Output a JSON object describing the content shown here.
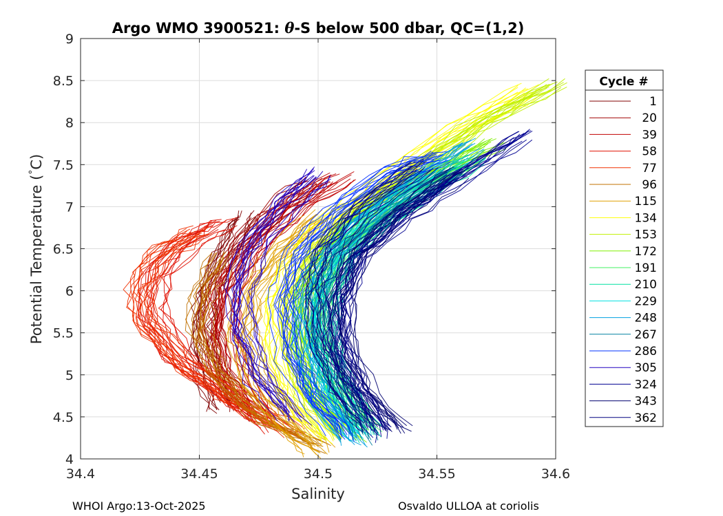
{
  "chart_data": {
    "type": "line",
    "title_parts": {
      "prefix": "Argo WMO 3900521: ",
      "theta": "θ",
      "suffix": "-S below 500 dbar,  QC=(1,2)"
    },
    "xlabel": "Salinity",
    "ylabel_parts": {
      "before": "Potential Temperature (",
      "degree": "°",
      "after": "C)"
    },
    "xlim": [
      34.4,
      34.6
    ],
    "ylim": [
      4,
      9
    ],
    "xticks": [
      "34.4",
      "34.45",
      "34.5",
      "34.55",
      "34.6"
    ],
    "yticks": [
      "4",
      "4.5",
      "5",
      "5.5",
      "6",
      "6.5",
      "7",
      "7.5",
      "8",
      "8.5",
      "9"
    ],
    "grid": true,
    "legend": {
      "title": "Cycle #",
      "position": "right",
      "entries": [
        {
          "label": "1",
          "color": "#800000"
        },
        {
          "label": "20",
          "color": "#a00000"
        },
        {
          "label": "39",
          "color": "#c00000"
        },
        {
          "label": "58",
          "color": "#e01000"
        },
        {
          "label": "77",
          "color": "#f03000"
        },
        {
          "label": "96",
          "color": "#c07000"
        },
        {
          "label": "115",
          "color": "#e0a000"
        },
        {
          "label": "134",
          "color": "#ffff00"
        },
        {
          "label": "153",
          "color": "#c0f000"
        },
        {
          "label": "172",
          "color": "#80f000"
        },
        {
          "label": "191",
          "color": "#40f060"
        },
        {
          "label": "210",
          "color": "#00e0a0"
        },
        {
          "label": "229",
          "color": "#00e0e0"
        },
        {
          "label": "248",
          "color": "#00a0e0"
        },
        {
          "label": "267",
          "color": "#0080a0"
        },
        {
          "label": "286",
          "color": "#0030ff"
        },
        {
          "label": "305",
          "color": "#2000c0"
        },
        {
          "label": "324",
          "color": "#000090"
        },
        {
          "label": "343",
          "color": "#000070"
        },
        {
          "label": "362",
          "color": "#000080"
        }
      ]
    },
    "series": [
      {
        "name": "1",
        "color": "#800000",
        "points": [
          [
            34.46,
            4.6
          ],
          [
            34.455,
            5.0
          ],
          [
            34.452,
            5.5
          ],
          [
            34.455,
            6.0
          ],
          [
            34.462,
            6.5
          ],
          [
            34.47,
            6.9
          ]
        ]
      },
      {
        "name": "20",
        "color": "#a00000",
        "points": [
          [
            34.47,
            4.6
          ],
          [
            34.46,
            5.0
          ],
          [
            34.456,
            5.5
          ],
          [
            34.458,
            6.0
          ],
          [
            34.468,
            6.5
          ],
          [
            34.485,
            7.0
          ],
          [
            34.5,
            7.3
          ]
        ]
      },
      {
        "name": "39",
        "color": "#c00000",
        "points": [
          [
            34.475,
            4.5
          ],
          [
            34.465,
            5.0
          ],
          [
            34.46,
            5.5
          ],
          [
            34.462,
            6.0
          ],
          [
            34.472,
            6.5
          ],
          [
            34.49,
            7.0
          ],
          [
            34.51,
            7.35
          ]
        ]
      },
      {
        "name": "58",
        "color": "#e01000",
        "points": [
          [
            34.48,
            4.4
          ],
          [
            34.46,
            4.8
          ],
          [
            34.44,
            5.2
          ],
          [
            34.43,
            5.7
          ],
          [
            34.432,
            6.2
          ],
          [
            34.445,
            6.6
          ],
          [
            34.46,
            6.8
          ]
        ]
      },
      {
        "name": "77",
        "color": "#f03000",
        "points": [
          [
            34.49,
            4.3
          ],
          [
            34.465,
            4.7
          ],
          [
            34.445,
            5.1
          ],
          [
            34.428,
            5.6
          ],
          [
            34.425,
            6.0
          ],
          [
            34.432,
            6.4
          ],
          [
            34.45,
            6.7
          ]
        ]
      },
      {
        "name": "96",
        "color": "#c07000",
        "points": [
          [
            34.5,
            4.15
          ],
          [
            34.475,
            4.5
          ],
          [
            34.458,
            5.0
          ],
          [
            34.45,
            5.5
          ],
          [
            34.452,
            6.0
          ],
          [
            34.46,
            6.4
          ]
        ]
      },
      {
        "name": "115",
        "color": "#e0a000",
        "points": [
          [
            34.5,
            4.1
          ],
          [
            34.485,
            4.5
          ],
          [
            34.472,
            5.0
          ],
          [
            34.468,
            5.5
          ],
          [
            34.472,
            6.0
          ],
          [
            34.485,
            6.5
          ],
          [
            34.5,
            6.9
          ]
        ]
      },
      {
        "name": "134",
        "color": "#ffff00",
        "points": [
          [
            34.505,
            4.25
          ],
          [
            34.49,
            4.7
          ],
          [
            34.484,
            5.2
          ],
          [
            34.484,
            5.8
          ],
          [
            34.49,
            6.3
          ],
          [
            34.505,
            6.8
          ],
          [
            34.53,
            7.3
          ],
          [
            34.56,
            7.9
          ],
          [
            34.59,
            8.4
          ]
        ]
      },
      {
        "name": "153",
        "color": "#c0f000",
        "points": [
          [
            34.51,
            4.3
          ],
          [
            34.496,
            4.8
          ],
          [
            34.49,
            5.3
          ],
          [
            34.49,
            5.9
          ],
          [
            34.498,
            6.4
          ],
          [
            34.515,
            6.9
          ],
          [
            34.54,
            7.4
          ],
          [
            34.57,
            8.0
          ],
          [
            34.6,
            8.45
          ]
        ]
      },
      {
        "name": "172",
        "color": "#80f000",
        "points": [
          [
            34.515,
            4.3
          ],
          [
            34.5,
            4.8
          ],
          [
            34.494,
            5.4
          ],
          [
            34.496,
            6.0
          ],
          [
            34.505,
            6.5
          ],
          [
            34.525,
            7.0
          ],
          [
            34.55,
            7.4
          ],
          [
            34.575,
            7.75
          ]
        ]
      },
      {
        "name": "191",
        "color": "#40f060",
        "points": [
          [
            34.52,
            4.35
          ],
          [
            34.505,
            4.9
          ],
          [
            34.499,
            5.4
          ],
          [
            34.5,
            6.0
          ],
          [
            34.51,
            6.5
          ],
          [
            34.53,
            7.0
          ],
          [
            34.56,
            7.5
          ]
        ]
      },
      {
        "name": "210",
        "color": "#00e0a0",
        "points": [
          [
            34.52,
            4.3
          ],
          [
            34.508,
            4.9
          ],
          [
            34.502,
            5.4
          ],
          [
            34.503,
            6.0
          ],
          [
            34.513,
            6.5
          ],
          [
            34.535,
            7.0
          ],
          [
            34.565,
            7.55
          ]
        ]
      },
      {
        "name": "229",
        "color": "#00e0e0",
        "points": [
          [
            34.518,
            4.25
          ],
          [
            34.506,
            4.8
          ],
          [
            34.5,
            5.3
          ],
          [
            34.5,
            5.9
          ],
          [
            34.508,
            6.4
          ],
          [
            34.525,
            6.9
          ],
          [
            34.55,
            7.4
          ]
        ]
      },
      {
        "name": "248",
        "color": "#00a0e0",
        "points": [
          [
            34.515,
            4.2
          ],
          [
            34.502,
            4.7
          ],
          [
            34.495,
            5.2
          ],
          [
            34.494,
            5.8
          ],
          [
            34.5,
            6.3
          ],
          [
            34.515,
            6.8
          ],
          [
            34.54,
            7.3
          ],
          [
            34.565,
            7.75
          ]
        ]
      },
      {
        "name": "267",
        "color": "#0080a0",
        "points": [
          [
            34.52,
            4.25
          ],
          [
            34.51,
            4.8
          ],
          [
            34.503,
            5.3
          ],
          [
            34.503,
            5.9
          ],
          [
            34.51,
            6.4
          ],
          [
            34.528,
            6.9
          ],
          [
            34.555,
            7.4
          ]
        ]
      },
      {
        "name": "286",
        "color": "#0030ff",
        "points": [
          [
            34.51,
            4.3
          ],
          [
            34.495,
            4.8
          ],
          [
            34.487,
            5.3
          ],
          [
            34.485,
            5.9
          ],
          [
            34.49,
            6.4
          ],
          [
            34.505,
            6.9
          ],
          [
            34.53,
            7.4
          ],
          [
            34.55,
            7.6
          ]
        ]
      },
      {
        "name": "305",
        "color": "#2000c0",
        "points": [
          [
            34.49,
            4.5
          ],
          [
            34.475,
            5.0
          ],
          [
            34.468,
            5.5
          ],
          [
            34.467,
            6.0
          ],
          [
            34.472,
            6.5
          ],
          [
            34.485,
            7.0
          ],
          [
            34.5,
            7.4
          ]
        ]
      },
      {
        "name": "324",
        "color": "#000090",
        "points": [
          [
            34.525,
            4.3
          ],
          [
            34.515,
            4.8
          ],
          [
            34.508,
            5.3
          ],
          [
            34.508,
            5.9
          ],
          [
            34.515,
            6.4
          ],
          [
            34.535,
            6.9
          ],
          [
            34.56,
            7.4
          ],
          [
            34.585,
            7.85
          ]
        ]
      },
      {
        "name": "343",
        "color": "#000070",
        "points": [
          [
            34.535,
            4.35
          ],
          [
            34.52,
            4.8
          ],
          [
            34.512,
            5.3
          ],
          [
            34.511,
            5.9
          ],
          [
            34.518,
            6.4
          ],
          [
            34.535,
            6.9
          ],
          [
            34.56,
            7.4
          ]
        ]
      },
      {
        "name": "362",
        "color": "#000080",
        "points": [
          [
            34.522,
            4.4
          ],
          [
            34.51,
            4.9
          ],
          [
            34.502,
            5.4
          ],
          [
            34.5,
            6.0
          ],
          [
            34.505,
            6.5
          ],
          [
            34.52,
            7.0
          ],
          [
            34.545,
            7.5
          ]
        ]
      }
    ]
  },
  "footer": {
    "left": "WHOI Argo:13-Oct-2025",
    "right": "Osvaldo ULLOA at coriolis"
  }
}
